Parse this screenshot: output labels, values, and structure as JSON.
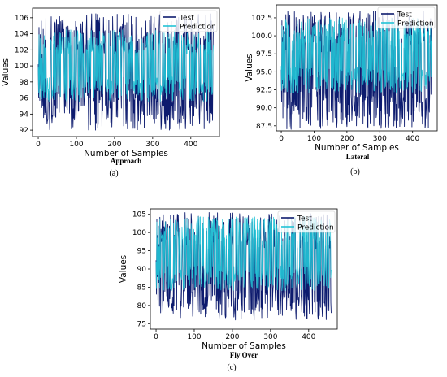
{
  "colors": {
    "test": "#0d1b6e",
    "prediction": "#22c3d6"
  },
  "chart_data": [
    {
      "type": "line",
      "title": "Approach",
      "sublabel": "(a)",
      "xlabel": "Number of Samples",
      "ylabel": "Values",
      "xlim": [
        -15,
        475
      ],
      "ylim": [
        91.2,
        107.2
      ],
      "xticks": [
        0,
        100,
        200,
        300,
        400
      ],
      "yticks": [
        92,
        94,
        96,
        98,
        100,
        102,
        104,
        106
      ],
      "legend": "top-right",
      "n_samples": 460,
      "series": [
        {
          "name": "Test",
          "low": 92.0,
          "high": 106.5,
          "sample": [
            100.2,
            96.1,
            104.8,
            98.3,
            95.7,
            103.9,
            99.6,
            97.2,
            105.6,
            94.8,
            101.4,
            96.5
          ]
        },
        {
          "name": "Prediction",
          "low": 95.5,
          "high": 104.5,
          "sample": [
            99.8,
            96.7,
            103.9,
            98.1,
            96.2,
            103.4,
            99.2,
            97.5,
            104.1,
            95.9,
            100.9,
            96.9
          ]
        }
      ]
    },
    {
      "type": "line",
      "title": "Lateral",
      "sublabel": "(b)",
      "xlabel": "Number of Samples",
      "ylabel": "Values",
      "xlim": [
        -15,
        475
      ],
      "ylim": [
        86.8,
        104.3
      ],
      "xticks": [
        0,
        100,
        200,
        300,
        400
      ],
      "yticks": [
        87.5,
        90.0,
        92.5,
        95.0,
        97.5,
        100.0,
        102.5
      ],
      "tick_decimals": 1,
      "legend": "top-right",
      "n_samples": 460,
      "series": [
        {
          "name": "Test",
          "low": 87.0,
          "high": 103.5,
          "sample": [
            95.3,
            90.8,
            102.1,
            93.4,
            99.7,
            88.6,
            101.3,
            92.2,
            97.9,
            90.1,
            100.6,
            94.2
          ]
        },
        {
          "name": "Prediction",
          "low": 92.0,
          "high": 102.5,
          "sample": [
            95.8,
            92.4,
            101.4,
            93.9,
            99.1,
            92.6,
            100.8,
            93.1,
            97.4,
            92.5,
            100.2,
            94.6
          ]
        }
      ]
    },
    {
      "type": "line",
      "title": "Fly Over",
      "sublabel": "(c)",
      "xlabel": "Number of Samples",
      "ylabel": "Values",
      "xlim": [
        -15,
        475
      ],
      "ylim": [
        73.5,
        106.5
      ],
      "xticks": [
        0,
        100,
        200,
        300,
        400
      ],
      "yticks": [
        75,
        80,
        85,
        90,
        95,
        100,
        105
      ],
      "legend": "top-right",
      "n_samples": 460,
      "series": [
        {
          "name": "Test",
          "low": 76.0,
          "high": 105.5,
          "sample": [
            92.4,
            83.1,
            103.6,
            87.9,
            99.2,
            81.5,
            101.8,
            86.3,
            96.7,
            79.8,
            104.2,
            90.5
          ]
        },
        {
          "name": "Prediction",
          "low": 84.0,
          "high": 104.5,
          "sample": [
            91.8,
            84.6,
            102.9,
            88.4,
            98.5,
            84.9,
            101.1,
            87.2,
            96.1,
            84.7,
            103.5,
            90.1
          ]
        }
      ]
    }
  ]
}
